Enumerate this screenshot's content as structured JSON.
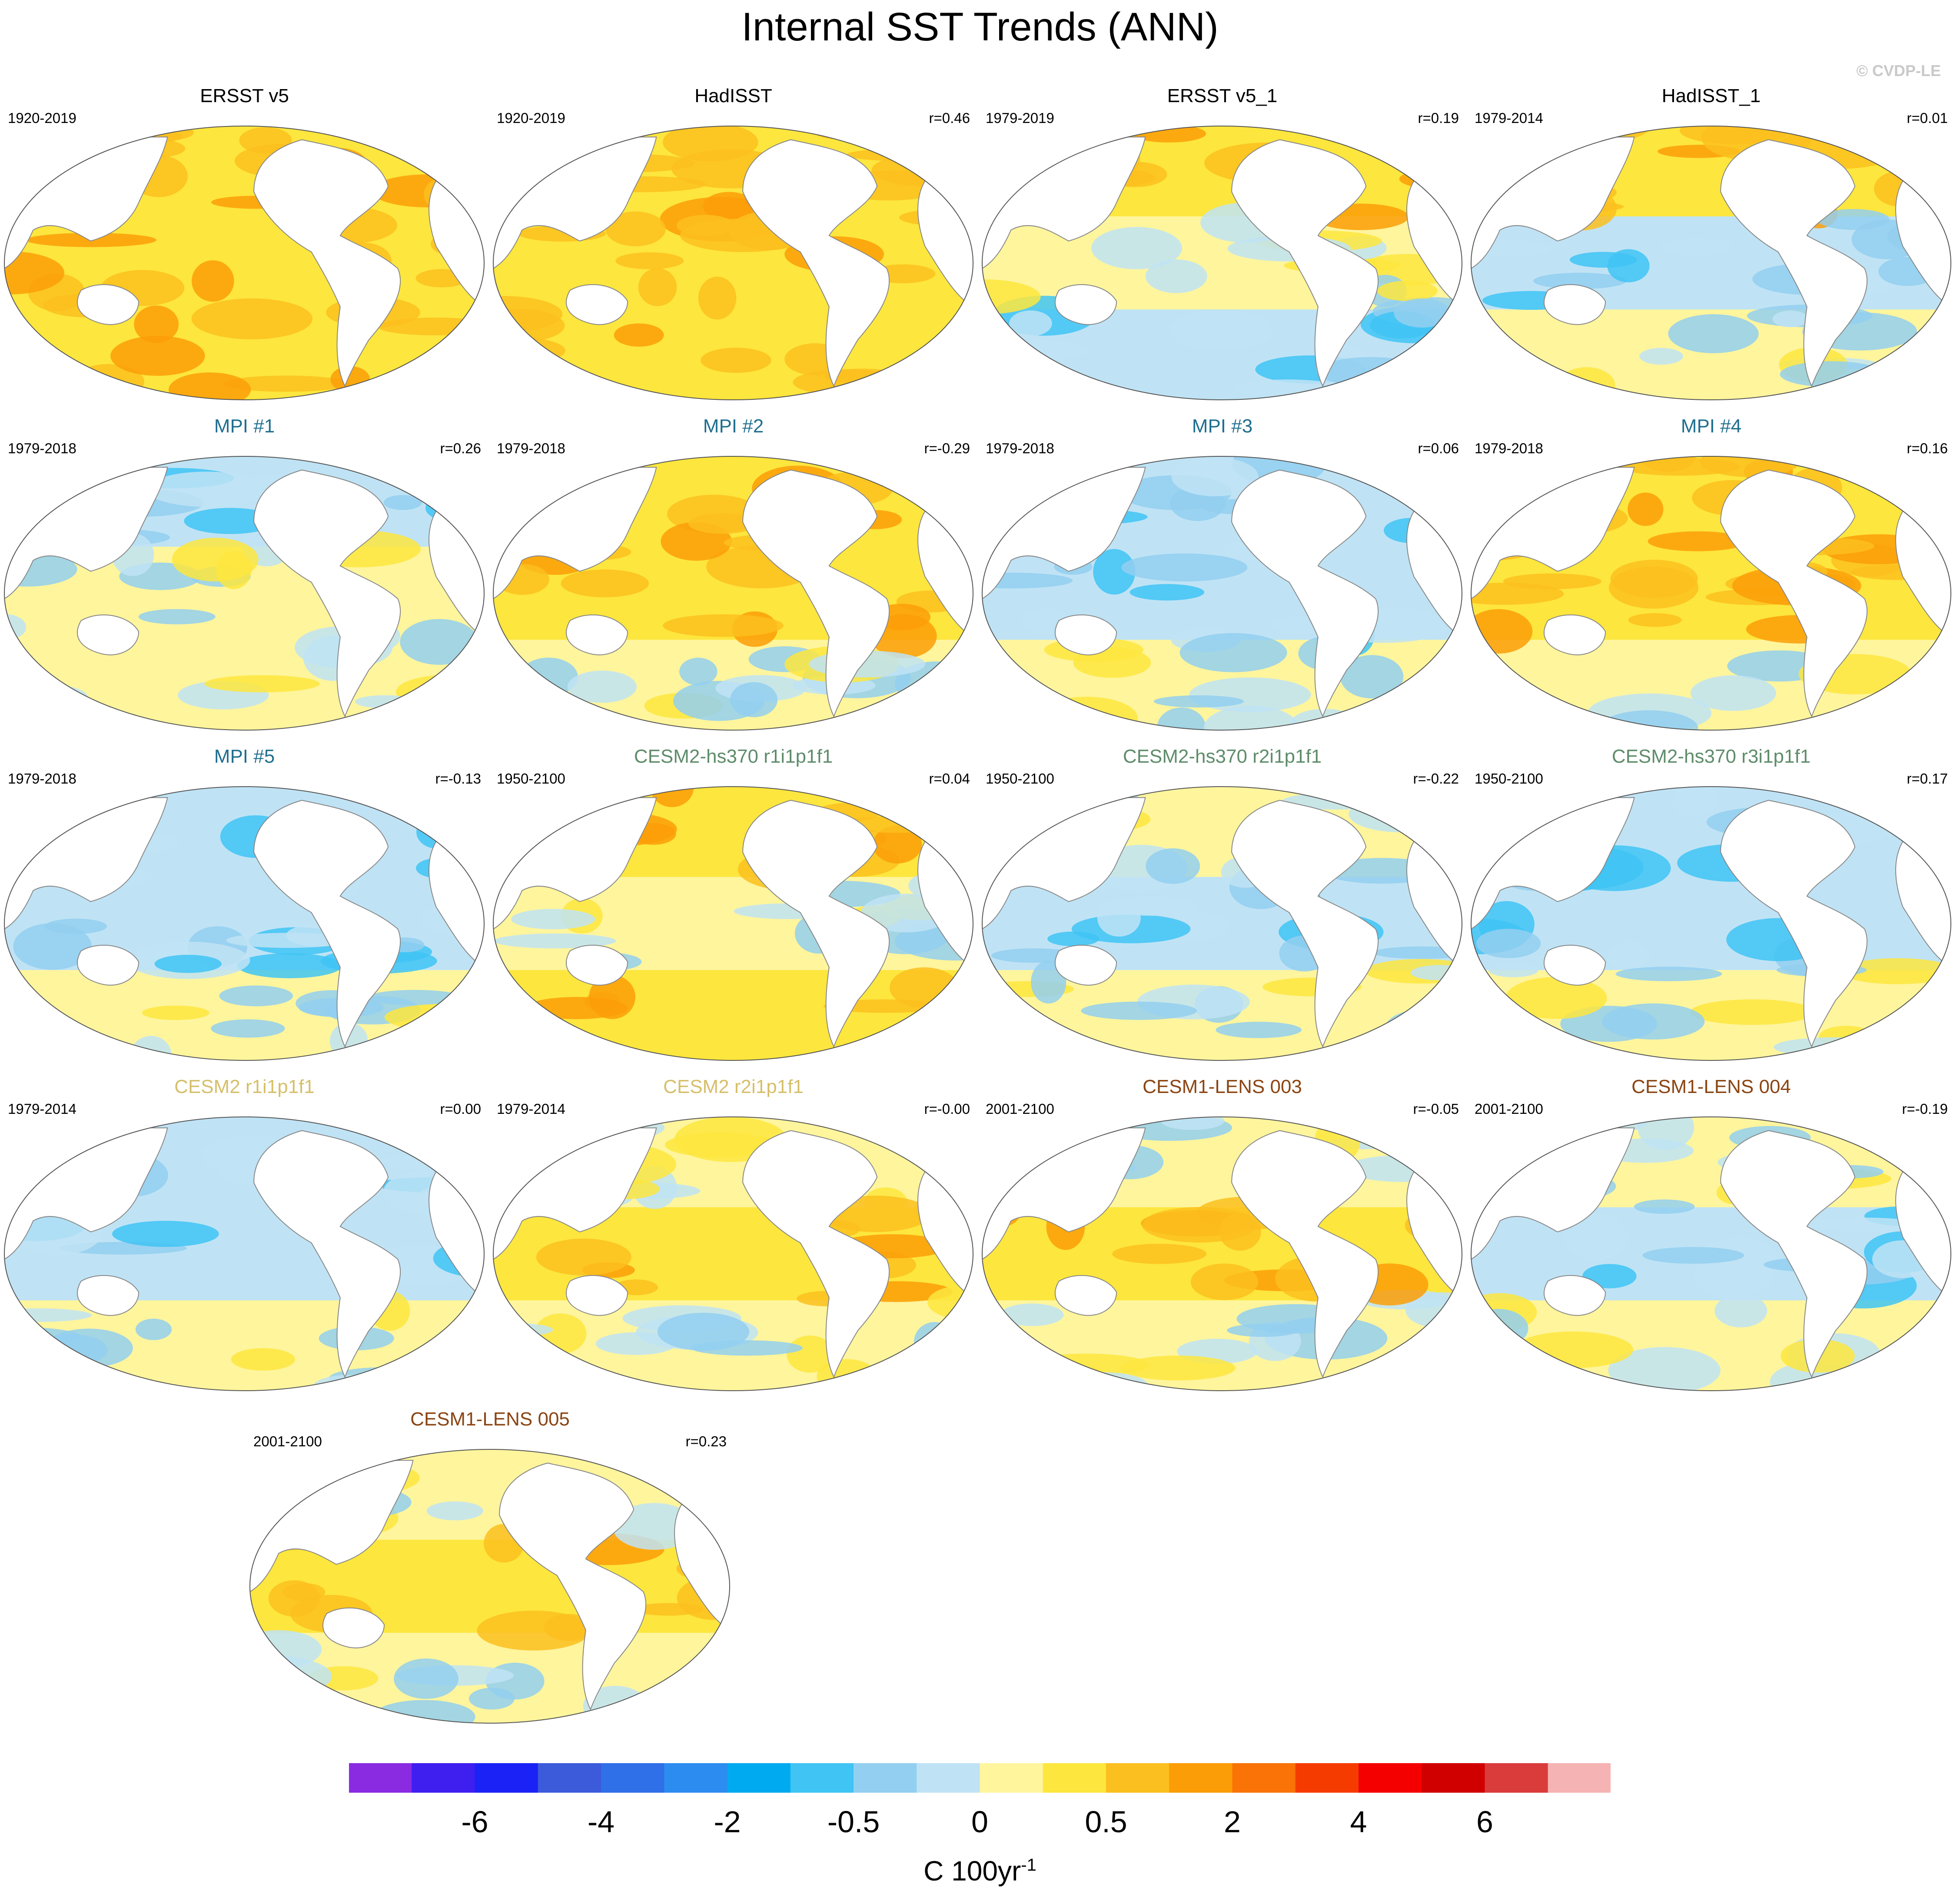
{
  "title": "Internal SST Trends (ANN)",
  "credit": "© CVDP-LE",
  "chart_data": {
    "type": "heatmap",
    "title": "Internal SST Trends (ANN)",
    "projection": "Robinson global maps centered on the Pacific",
    "panels": [
      {
        "name": "ERSST v5",
        "period": "1920-2019",
        "r": "",
        "title_color": "#000000",
        "anomaly": [
          "warm",
          "warm",
          "warm"
        ]
      },
      {
        "name": "HadISST",
        "period": "1920-2019",
        "r": "r=0.46",
        "title_color": "#000000",
        "anomaly": [
          "warm",
          "warm",
          "warm"
        ]
      },
      {
        "name": "ERSST v5_1",
        "period": "1979-2019",
        "r": "r=0.19",
        "title_color": "#000000",
        "anomaly": [
          "warm",
          "mixed",
          "cool"
        ]
      },
      {
        "name": "HadISST_1",
        "period": "1979-2014",
        "r": "r=0.01",
        "title_color": "#000000",
        "anomaly": [
          "warm",
          "cool",
          "mixed"
        ]
      },
      {
        "name": "MPI #1",
        "period": "1979-2018",
        "r": "r=0.26",
        "title_color": "#1f6f8f",
        "anomaly": [
          "cool",
          "mixed",
          "mixed"
        ]
      },
      {
        "name": "MPI #2",
        "period": "1979-2018",
        "r": "r=-0.29",
        "title_color": "#1f6f8f",
        "anomaly": [
          "warm",
          "warm",
          "mixed"
        ]
      },
      {
        "name": "MPI #3",
        "period": "1979-2018",
        "r": "r=0.06",
        "title_color": "#1f6f8f",
        "anomaly": [
          "cool",
          "cool",
          "mixed"
        ]
      },
      {
        "name": "MPI #4",
        "period": "1979-2018",
        "r": "r=0.16",
        "title_color": "#1f6f8f",
        "anomaly": [
          "warm",
          "warm",
          "mixed"
        ]
      },
      {
        "name": "MPI #5",
        "period": "1979-2018",
        "r": "r=-0.13",
        "title_color": "#1f6f8f",
        "anomaly": [
          "cool",
          "cool",
          "mixed"
        ]
      },
      {
        "name": "CESM2-hs370 r1i1p1f1",
        "period": "1950-2100",
        "r": "r=0.04",
        "title_color": "#5e8c6a",
        "anomaly": [
          "warm",
          "mixed",
          "warm"
        ]
      },
      {
        "name": "CESM2-hs370 r2i1p1f1",
        "period": "1950-2100",
        "r": "r=-0.22",
        "title_color": "#5e8c6a",
        "anomaly": [
          "mixed",
          "cool",
          "mixed"
        ]
      },
      {
        "name": "CESM2-hs370 r3i1p1f1",
        "period": "1950-2100",
        "r": "r=0.17",
        "title_color": "#5e8c6a",
        "anomaly": [
          "cool",
          "cool",
          "mixed"
        ]
      },
      {
        "name": "CESM2 r1i1p1f1",
        "period": "1979-2014",
        "r": "r=0.00",
        "title_color": "#d6bf6a",
        "anomaly": [
          "cool",
          "cool",
          "mixed"
        ]
      },
      {
        "name": "CESM2 r2i1p1f1",
        "period": "1979-2014",
        "r": "r=-0.00",
        "title_color": "#d6bf6a",
        "anomaly": [
          "mixed",
          "warm",
          "mixed"
        ]
      },
      {
        "name": "CESM1-LENS 003",
        "period": "2001-2100",
        "r": "r=-0.05",
        "title_color": "#8b4513",
        "anomaly": [
          "mixed",
          "warm",
          "mixed"
        ]
      },
      {
        "name": "CESM1-LENS 004",
        "period": "2001-2100",
        "r": "r=-0.19",
        "title_color": "#8b4513",
        "anomaly": [
          "mixed",
          "cool",
          "mixed"
        ]
      },
      {
        "name": "CESM1-LENS 005",
        "period": "2001-2100",
        "r": "r=0.23",
        "title_color": "#8b4513",
        "anomaly": [
          "mixed",
          "warm",
          "mixed"
        ]
      }
    ],
    "colorbar": {
      "label": "C 100yr",
      "label_exponent": "-1",
      "tick_labels": [
        "-6",
        "-4",
        "-2",
        "-0.5",
        "0",
        "0.5",
        "2",
        "4",
        "6"
      ],
      "colors": [
        "#8a2be2",
        "#3f1ef0",
        "#1a22f5",
        "#3b5bdb",
        "#2f6fe8",
        "#2d8cf0",
        "#00aaf0",
        "#40c4f4",
        "#93cff0",
        "#bfe3f5",
        "#fff59d",
        "#fde63e",
        "#fbbf1f",
        "#fb9d07",
        "#f97306",
        "#f53b00",
        "#f50000",
        "#d00000",
        "#da3c3c",
        "#f6b3b3"
      ]
    }
  }
}
